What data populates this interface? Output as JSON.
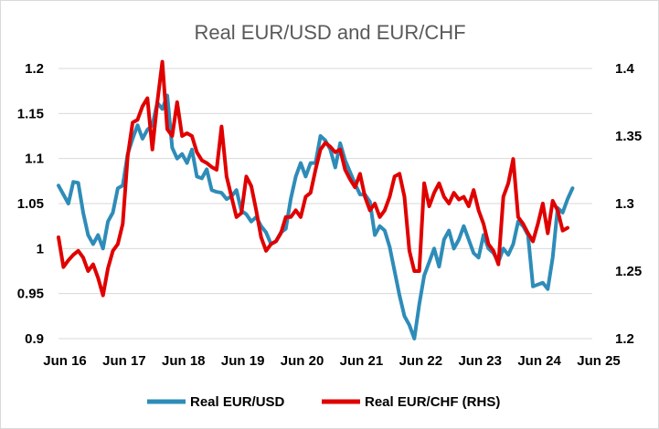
{
  "chart_data": {
    "type": "line",
    "title": "Real EUR/USD and EUR/CHF",
    "xlabel": "",
    "ylabel": "",
    "x_ticks": [
      "Jun 16",
      "Jun 17",
      "Jun 18",
      "Jun 19",
      "Jun 20",
      "Jun 21",
      "Jun 22",
      "Jun 23",
      "Jun 24",
      "Jun 25"
    ],
    "x_range": [
      "2016-06",
      "2025-06"
    ],
    "ylim_left": [
      0.9,
      1.2
    ],
    "yticks_left": [
      "0.9",
      "0.95",
      "1",
      "1.05",
      "1.1",
      "1.15",
      "1.2"
    ],
    "ylim_right": [
      1.2,
      1.4
    ],
    "yticks_right": [
      "1.2",
      "1.25",
      "1.3",
      "1.35",
      "1.4"
    ],
    "gridlines": "horizontal",
    "legend_position": "bottom",
    "series": [
      {
        "name": "Real EUR/USD",
        "axis": "left",
        "color": "#2e8cb8",
        "points": [
          [
            "2016-06",
            1.07
          ],
          [
            "2016-08",
            1.05
          ],
          [
            "2016-09",
            1.074
          ],
          [
            "2016-10",
            1.073
          ],
          [
            "2016-11",
            1.04
          ],
          [
            "2016-12",
            1.015
          ],
          [
            "2017-01",
            1.005
          ],
          [
            "2017-02",
            1.015
          ],
          [
            "2017-03",
            1.0
          ],
          [
            "2017-04",
            1.03
          ],
          [
            "2017-05",
            1.04
          ],
          [
            "2017-06",
            1.067
          ],
          [
            "2017-07",
            1.07
          ],
          [
            "2017-08",
            1.105
          ],
          [
            "2017-09",
            1.122
          ],
          [
            "2017-10",
            1.137
          ],
          [
            "2017-11",
            1.122
          ],
          [
            "2017-12",
            1.132
          ],
          [
            "2018-01",
            1.137
          ],
          [
            "2018-02",
            1.162
          ],
          [
            "2018-03",
            1.155
          ],
          [
            "2018-04",
            1.17
          ],
          [
            "2018-05",
            1.112
          ],
          [
            "2018-06",
            1.1
          ],
          [
            "2018-07",
            1.105
          ],
          [
            "2018-08",
            1.095
          ],
          [
            "2018-09",
            1.11
          ],
          [
            "2018-10",
            1.08
          ],
          [
            "2018-11",
            1.078
          ],
          [
            "2018-12",
            1.088
          ],
          [
            "2019-01",
            1.065
          ],
          [
            "2019-02",
            1.063
          ],
          [
            "2019-03",
            1.062
          ],
          [
            "2019-04",
            1.055
          ],
          [
            "2019-05",
            1.058
          ],
          [
            "2019-06",
            1.065
          ],
          [
            "2019-07",
            1.042
          ],
          [
            "2019-08",
            1.038
          ],
          [
            "2019-09",
            1.03
          ],
          [
            "2019-10",
            1.035
          ],
          [
            "2019-11",
            1.025
          ],
          [
            "2019-12",
            1.018
          ],
          [
            "2020-01",
            1.005
          ],
          [
            "2020-02",
            1.008
          ],
          [
            "2020-03",
            1.018
          ],
          [
            "2020-04",
            1.022
          ],
          [
            "2020-05",
            1.055
          ],
          [
            "2020-06",
            1.08
          ],
          [
            "2020-07",
            1.095
          ],
          [
            "2020-08",
            1.08
          ],
          [
            "2020-09",
            1.095
          ],
          [
            "2020-10",
            1.095
          ],
          [
            "2020-11",
            1.125
          ],
          [
            "2020-12",
            1.12
          ],
          [
            "2021-01",
            1.11
          ],
          [
            "2021-02",
            1.09
          ],
          [
            "2021-03",
            1.117
          ],
          [
            "2021-04",
            1.098
          ],
          [
            "2021-05",
            1.085
          ],
          [
            "2021-06",
            1.072
          ],
          [
            "2021-07",
            1.06
          ],
          [
            "2021-08",
            1.06
          ],
          [
            "2021-09",
            1.052
          ],
          [
            "2021-10",
            1.015
          ],
          [
            "2021-11",
            1.025
          ],
          [
            "2021-12",
            1.02
          ],
          [
            "2022-01",
            1.002
          ],
          [
            "2022-02",
            0.975
          ],
          [
            "2022-03",
            0.948
          ],
          [
            "2022-04",
            0.925
          ],
          [
            "2022-05",
            0.915
          ],
          [
            "2022-06",
            0.9
          ],
          [
            "2022-07",
            0.938
          ],
          [
            "2022-08",
            0.97
          ],
          [
            "2022-09",
            0.985
          ],
          [
            "2022-10",
            1.0
          ],
          [
            "2022-11",
            0.98
          ],
          [
            "2022-12",
            1.01
          ],
          [
            "2023-01",
            1.02
          ],
          [
            "2023-02",
            1.0
          ],
          [
            "2023-03",
            1.01
          ],
          [
            "2023-04",
            1.025
          ],
          [
            "2023-05",
            1.01
          ],
          [
            "2023-06",
            0.995
          ],
          [
            "2023-07",
            0.99
          ],
          [
            "2023-08",
            1.015
          ],
          [
            "2023-09",
            1.0
          ],
          [
            "2023-10",
            0.995
          ],
          [
            "2023-11",
            0.985
          ],
          [
            "2023-12",
            1.0
          ],
          [
            "2024-01",
            0.993
          ],
          [
            "2024-02",
            1.005
          ],
          [
            "2024-03",
            1.03
          ],
          [
            "2024-04",
            1.025
          ],
          [
            "2024-05",
            1.015
          ],
          [
            "2024-06",
            0.958
          ],
          [
            "2024-07",
            0.96
          ],
          [
            "2024-08",
            0.962
          ],
          [
            "2024-09",
            0.955
          ],
          [
            "2024-10",
            0.99
          ],
          [
            "2024-11",
            1.045
          ],
          [
            "2024-12",
            1.04
          ],
          [
            "2025-01",
            1.055
          ],
          [
            "2025-02",
            1.067
          ]
        ]
      },
      {
        "name": "Real EUR/CHF (RHS)",
        "axis": "right",
        "color": "#e00000",
        "points": [
          [
            "2016-06",
            1.275
          ],
          [
            "2016-07",
            1.253
          ],
          [
            "2016-08",
            1.258
          ],
          [
            "2016-09",
            1.262
          ],
          [
            "2016-10",
            1.265
          ],
          [
            "2016-11",
            1.26
          ],
          [
            "2016-12",
            1.25
          ],
          [
            "2017-01",
            1.255
          ],
          [
            "2017-02",
            1.245
          ],
          [
            "2017-03",
            1.232
          ],
          [
            "2017-04",
            1.252
          ],
          [
            "2017-05",
            1.265
          ],
          [
            "2017-06",
            1.27
          ],
          [
            "2017-07",
            1.285
          ],
          [
            "2017-08",
            1.335
          ],
          [
            "2017-09",
            1.36
          ],
          [
            "2017-10",
            1.362
          ],
          [
            "2017-11",
            1.372
          ],
          [
            "2017-12",
            1.378
          ],
          [
            "2018-01",
            1.34
          ],
          [
            "2018-02",
            1.375
          ],
          [
            "2018-03",
            1.405
          ],
          [
            "2018-04",
            1.355
          ],
          [
            "2018-05",
            1.35
          ],
          [
            "2018-06",
            1.375
          ],
          [
            "2018-07",
            1.35
          ],
          [
            "2018-08",
            1.352
          ],
          [
            "2018-09",
            1.35
          ],
          [
            "2018-10",
            1.338
          ],
          [
            "2018-11",
            1.332
          ],
          [
            "2018-12",
            1.33
          ],
          [
            "2019-01",
            1.327
          ],
          [
            "2019-02",
            1.325
          ],
          [
            "2019-03",
            1.357
          ],
          [
            "2019-04",
            1.32
          ],
          [
            "2019-05",
            1.305
          ],
          [
            "2019-06",
            1.29
          ],
          [
            "2019-07",
            1.293
          ],
          [
            "2019-08",
            1.32
          ],
          [
            "2019-09",
            1.313
          ],
          [
            "2019-10",
            1.295
          ],
          [
            "2019-11",
            1.275
          ],
          [
            "2019-12",
            1.265
          ],
          [
            "2020-01",
            1.27
          ],
          [
            "2020-02",
            1.272
          ],
          [
            "2020-03",
            1.278
          ],
          [
            "2020-04",
            1.29
          ],
          [
            "2020-05",
            1.29
          ],
          [
            "2020-06",
            1.295
          ],
          [
            "2020-07",
            1.29
          ],
          [
            "2020-08",
            1.305
          ],
          [
            "2020-09",
            1.308
          ],
          [
            "2020-10",
            1.325
          ],
          [
            "2020-11",
            1.34
          ],
          [
            "2020-12",
            1.345
          ],
          [
            "2021-01",
            1.342
          ],
          [
            "2021-02",
            1.338
          ],
          [
            "2021-03",
            1.34
          ],
          [
            "2021-04",
            1.325
          ],
          [
            "2021-05",
            1.318
          ],
          [
            "2021-06",
            1.312
          ],
          [
            "2021-07",
            1.322
          ],
          [
            "2021-08",
            1.305
          ],
          [
            "2021-09",
            1.295
          ],
          [
            "2021-10",
            1.3
          ],
          [
            "2021-11",
            1.29
          ],
          [
            "2021-12",
            1.295
          ],
          [
            "2022-01",
            1.305
          ],
          [
            "2022-02",
            1.32
          ],
          [
            "2022-03",
            1.322
          ],
          [
            "2022-04",
            1.305
          ],
          [
            "2022-05",
            1.265
          ],
          [
            "2022-06",
            1.25
          ],
          [
            "2022-07",
            1.25
          ],
          [
            "2022-08",
            1.315
          ],
          [
            "2022-09",
            1.298
          ],
          [
            "2022-10",
            1.308
          ],
          [
            "2022-11",
            1.315
          ],
          [
            "2022-12",
            1.305
          ],
          [
            "2023-01",
            1.3
          ],
          [
            "2023-02",
            1.308
          ],
          [
            "2023-03",
            1.303
          ],
          [
            "2023-04",
            1.305
          ],
          [
            "2023-05",
            1.298
          ],
          [
            "2023-06",
            1.31
          ],
          [
            "2023-07",
            1.295
          ],
          [
            "2023-08",
            1.285
          ],
          [
            "2023-09",
            1.27
          ],
          [
            "2023-10",
            1.265
          ],
          [
            "2023-11",
            1.255
          ],
          [
            "2023-12",
            1.305
          ],
          [
            "2024-01",
            1.315
          ],
          [
            "2024-02",
            1.333
          ],
          [
            "2024-03",
            1.29
          ],
          [
            "2024-04",
            1.285
          ],
          [
            "2024-05",
            1.278
          ],
          [
            "2024-06",
            1.272
          ],
          [
            "2024-07",
            1.285
          ],
          [
            "2024-08",
            1.3
          ],
          [
            "2024-09",
            1.278
          ],
          [
            "2024-10",
            1.302
          ],
          [
            "2024-11",
            1.295
          ],
          [
            "2024-12",
            1.28
          ],
          [
            "2025-01",
            1.282
          ]
        ]
      }
    ]
  }
}
